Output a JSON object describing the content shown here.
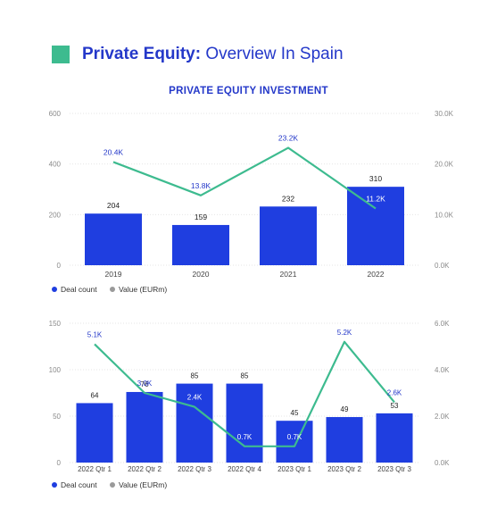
{
  "header": {
    "title_bold": "Private Equity:",
    "title_rest": " Overview In Spain",
    "accent_color": "#3dbb8f",
    "brand_color": "#2438c9"
  },
  "chart_data": [
    {
      "type": "bar",
      "title": "PRIVATE EQUITY INVESTMENT",
      "categories": [
        "2019",
        "2020",
        "2021",
        "2022"
      ],
      "series": [
        {
          "name": "Deal count",
          "kind": "bar",
          "axis": "left",
          "values": [
            204,
            159,
            232,
            310
          ],
          "labels": [
            "204",
            "159",
            "232",
            "310"
          ],
          "color": "#1f3ee0"
        },
        {
          "name": "Value (EURm)",
          "kind": "line",
          "axis": "right",
          "values": [
            20.4,
            13.8,
            23.2,
            11.2
          ],
          "labels": [
            "20.4K",
            "13.8K",
            "23.2K",
            "11.2K"
          ],
          "color": "#3dbb8f"
        }
      ],
      "y_left": {
        "ylim": [
          0,
          600
        ],
        "ticks": [
          "0",
          "200",
          "400",
          "600"
        ]
      },
      "y_right": {
        "ylim": [
          0,
          30
        ],
        "ticks": [
          "0.0K",
          "10.0K",
          "20.0K",
          "30.0K"
        ]
      },
      "grid": true,
      "legend": "bottom-left"
    },
    {
      "type": "bar",
      "title": "",
      "categories": [
        "2022 Qtr 1",
        "2022 Qtr 2",
        "2022 Qtr 3",
        "2022 Qtr 4",
        "2023 Qtr 1",
        "2023 Qtr 2",
        "2023 Qtr 3"
      ],
      "series": [
        {
          "name": "Deal count",
          "kind": "bar",
          "axis": "left",
          "values": [
            64,
            76,
            85,
            85,
            45,
            49,
            53
          ],
          "labels": [
            "64",
            "76",
            "85",
            "85",
            "45",
            "49",
            "53"
          ],
          "color": "#1f3ee0"
        },
        {
          "name": "Value (EURm)",
          "kind": "line",
          "axis": "right",
          "values": [
            5.1,
            3.0,
            2.4,
            0.7,
            0.7,
            5.2,
            2.6
          ],
          "labels": [
            "5.1K",
            "3.0K",
            "2.4K",
            "0.7K",
            "0.7K",
            "5.2K",
            "2.6K"
          ],
          "color": "#3dbb8f"
        }
      ],
      "y_left": {
        "ylim": [
          0,
          150
        ],
        "ticks": [
          "0",
          "50",
          "100",
          "150"
        ]
      },
      "y_right": {
        "ylim": [
          0,
          6
        ],
        "ticks": [
          "0.0K",
          "2.0K",
          "4.0K",
          "6.0K"
        ]
      },
      "grid": true,
      "legend": "bottom-left"
    }
  ]
}
